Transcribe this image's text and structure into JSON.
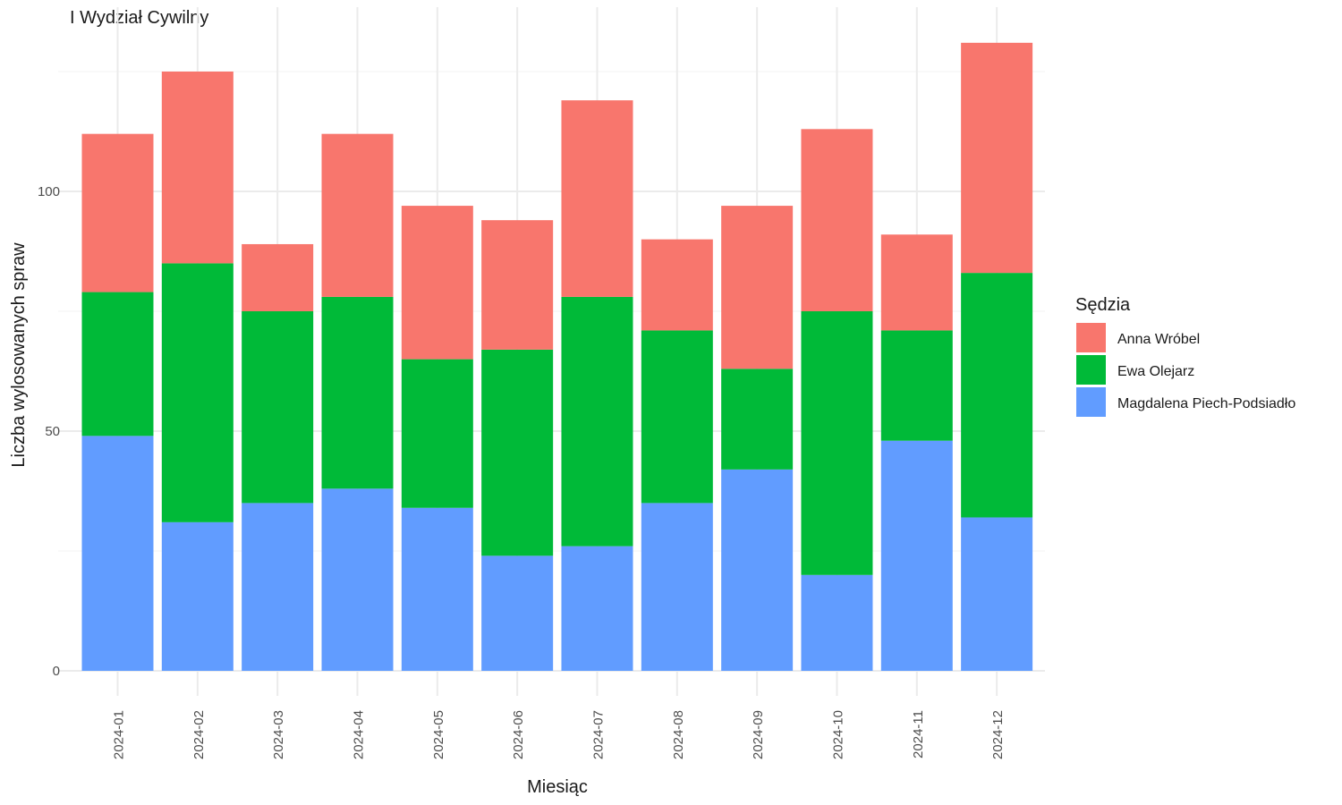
{
  "chart_data": {
    "type": "bar",
    "stacked": true,
    "title": "I Wydział Cywilny",
    "xlabel": "Miesiąc",
    "ylabel": "Liczba wylosowanych spraw",
    "ylim": [
      0,
      133
    ],
    "yticks": [
      0,
      50,
      100
    ],
    "grid": true,
    "legend": {
      "title": "Sędzia",
      "position": "right"
    },
    "categories": [
      "2024-01",
      "2024-02",
      "2024-03",
      "2024-04",
      "2024-05",
      "2024-06",
      "2024-07",
      "2024-08",
      "2024-09",
      "2024-10",
      "2024-11",
      "2024-12"
    ],
    "series": [
      {
        "name": "Magdalena Piech-Podsiadło",
        "color": "#619CFF",
        "values": [
          49,
          31,
          35,
          38,
          34,
          24,
          26,
          35,
          42,
          20,
          48,
          32
        ]
      },
      {
        "name": "Ewa Olejarz",
        "color": "#00BA38",
        "values": [
          30,
          54,
          40,
          40,
          31,
          43,
          52,
          36,
          21,
          55,
          23,
          51
        ]
      },
      {
        "name": "Anna Wróbel",
        "color": "#F8766D",
        "values": [
          33,
          40,
          14,
          34,
          32,
          27,
          41,
          19,
          34,
          38,
          20,
          48
        ]
      }
    ],
    "legend_order": [
      "Anna Wróbel",
      "Ewa Olejarz",
      "Magdalena Piech-Podsiadło"
    ]
  }
}
